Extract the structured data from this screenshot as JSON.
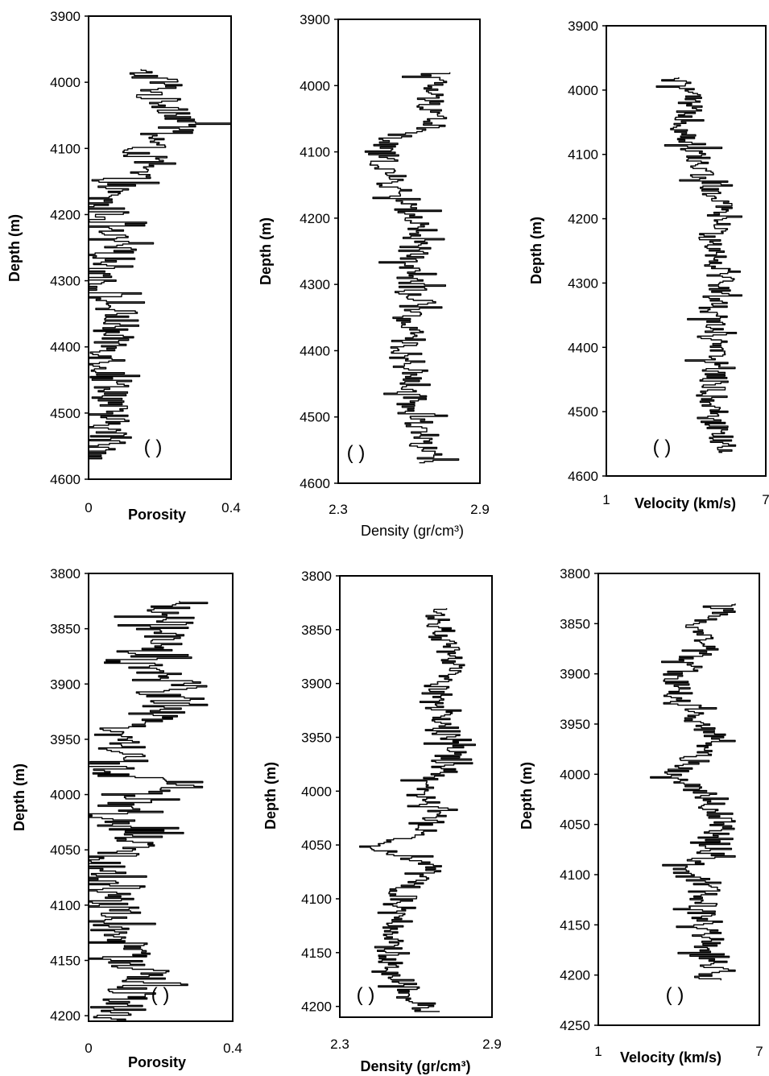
{
  "chart_data": [
    {
      "id": "top-porosity",
      "type": "line",
      "ylabel": "Depth (m)",
      "xlabel": "Porosity",
      "xlabel_bold": true,
      "ylim": [
        3900,
        4600
      ],
      "xlim": [
        0,
        0.4
      ],
      "yticks": [
        "3900",
        "4000",
        "4100",
        "4200",
        "4300",
        "4400",
        "4500",
        "4600"
      ],
      "xticks": [
        "0",
        "0.4"
      ],
      "panel_label": "(     )",
      "series": [
        {
          "depth": [
            3980,
            4000,
            4020,
            4040,
            4060,
            4080,
            4100,
            4120,
            4140,
            4160,
            4180,
            4200,
            4220,
            4240,
            4260,
            4280,
            4300,
            4320,
            4340,
            4360,
            4380,
            4400,
            4420,
            4440,
            4460,
            4480,
            4500,
            4520,
            4540,
            4560,
            4570
          ],
          "value": [
            0.12,
            0.22,
            0.18,
            0.25,
            0.28,
            0.2,
            0.15,
            0.16,
            0.12,
            0.06,
            0.03,
            0.06,
            0.04,
            0.06,
            0.08,
            0.06,
            0.02,
            0.04,
            0.07,
            0.09,
            0.06,
            0.07,
            0.06,
            0.05,
            0.08,
            0.07,
            0.04,
            0.06,
            0.05,
            0.04,
            0.03
          ],
          "spread": 0.08,
          "min": 0,
          "max": 0.42
        }
      ]
    },
    {
      "id": "top-density",
      "type": "line",
      "ylabel": "Depth (m)",
      "xlabel": "Density (gr/cm³)",
      "xlabel_bold": false,
      "ylim": [
        3900,
        4600
      ],
      "xlim": [
        2.3,
        2.9
      ],
      "yticks": [
        "3900",
        "4000",
        "4100",
        "4200",
        "4300",
        "4400",
        "4500",
        "4600"
      ],
      "xticks": [
        "2.3",
        "2.9"
      ],
      "panel_label": "(  )",
      "series": [
        {
          "depth": [
            3980,
            4000,
            4020,
            4040,
            4060,
            4080,
            4100,
            4120,
            4140,
            4160,
            4180,
            4200,
            4220,
            4240,
            4260,
            4280,
            4300,
            4320,
            4340,
            4360,
            4380,
            4400,
            4420,
            4440,
            4460,
            4480,
            4500,
            4520,
            4540,
            4560,
            4570
          ],
          "value": [
            2.7,
            2.7,
            2.68,
            2.72,
            2.7,
            2.5,
            2.48,
            2.5,
            2.52,
            2.55,
            2.6,
            2.62,
            2.6,
            2.63,
            2.6,
            2.6,
            2.62,
            2.6,
            2.62,
            2.58,
            2.6,
            2.58,
            2.6,
            2.62,
            2.62,
            2.6,
            2.64,
            2.66,
            2.66,
            2.68,
            2.68
          ],
          "spread": 0.09,
          "min": 2.3,
          "max": 2.89
        }
      ]
    },
    {
      "id": "top-velocity",
      "type": "line",
      "ylabel": "Depth (m)",
      "xlabel": "Velocity (km/s)",
      "xlabel_bold": true,
      "ylim": [
        3900,
        4600
      ],
      "xlim": [
        1,
        7
      ],
      "yticks": [
        "3900",
        "4000",
        "4100",
        "4200",
        "4300",
        "4400",
        "4500",
        "4600"
      ],
      "xticks": [
        "1",
        "7"
      ],
      "panel_label": "(  )",
      "series": [
        {
          "depth": [
            3980,
            4000,
            4020,
            4040,
            4060,
            4080,
            4100,
            4120,
            4140,
            4160,
            4180,
            4200,
            4220,
            4240,
            4260,
            4280,
            4300,
            4320,
            4340,
            4360,
            4380,
            4400,
            4420,
            4440,
            4460,
            4480,
            4500,
            4520,
            4540,
            4560,
            4565
          ],
          "value": [
            3.4,
            4.1,
            4.0,
            4.2,
            3.9,
            4.2,
            4.4,
            4.5,
            4.7,
            5.0,
            5.3,
            5.3,
            5.0,
            5.1,
            5.2,
            5.3,
            5.4,
            5.2,
            5.0,
            5.2,
            5.1,
            5.0,
            5.0,
            5.1,
            5.0,
            5.0,
            5.1,
            5.2,
            5.3,
            5.4,
            5.5
          ],
          "spread": 0.7,
          "min": 2.6,
          "max": 6.1
        }
      ]
    },
    {
      "id": "bottom-porosity",
      "type": "line",
      "ylabel": "Depth (m)",
      "xlabel": "Porosity",
      "xlabel_bold": true,
      "ylim": [
        3800,
        4205
      ],
      "xlim": [
        0,
        0.4
      ],
      "yticks": [
        "3800",
        "3850",
        "3900",
        "3950",
        "4000",
        "4050",
        "4100",
        "4150",
        "4200"
      ],
      "xticks": [
        "0",
        "0.4"
      ],
      "panel_label": "( )",
      "series": [
        {
          "depth": [
            3825,
            3840,
            3860,
            3880,
            3900,
            3920,
            3940,
            3960,
            3980,
            3990,
            4000,
            4020,
            4040,
            4060,
            4080,
            4100,
            4120,
            4140,
            4160,
            4180,
            4200,
            4205
          ],
          "value": [
            0.2,
            0.22,
            0.18,
            0.12,
            0.25,
            0.22,
            0.1,
            0.1,
            0.05,
            0.28,
            0.12,
            0.05,
            0.15,
            0.03,
            0.06,
            0.08,
            0.06,
            0.1,
            0.15,
            0.12,
            0.04,
            0.06
          ],
          "spread": 0.1,
          "min": 0,
          "max": 0.33
        }
      ]
    },
    {
      "id": "bottom-density",
      "type": "line",
      "ylabel": "Depth (m)",
      "xlabel": "Density (gr/cm³)",
      "xlabel_bold": true,
      "ylim": [
        3800,
        4210
      ],
      "xlim": [
        2.3,
        2.9
      ],
      "yticks": [
        "3800",
        "3850",
        "3900",
        "3950",
        "4000",
        "4050",
        "4100",
        "4150",
        "4200"
      ],
      "xticks": [
        "2.3",
        "2.9"
      ],
      "panel_label": "( )",
      "series": [
        {
          "depth": [
            3830,
            3850,
            3870,
            3890,
            3900,
            3920,
            3940,
            3960,
            3980,
            4000,
            4020,
            4040,
            4050,
            4070,
            4090,
            4110,
            4130,
            4150,
            4170,
            4190,
            4205
          ],
          "value": [
            2.68,
            2.7,
            2.72,
            2.75,
            2.7,
            2.68,
            2.72,
            2.74,
            2.7,
            2.6,
            2.7,
            2.62,
            2.42,
            2.7,
            2.55,
            2.55,
            2.52,
            2.48,
            2.52,
            2.6,
            2.65
          ],
          "spread": 0.07,
          "min": 2.36,
          "max": 2.88
        }
      ]
    },
    {
      "id": "bottom-velocity",
      "type": "line",
      "ylabel": "Depth (m)",
      "xlabel": "Velocity (km/s)",
      "xlabel_bold": true,
      "ylim": [
        3800,
        4250
      ],
      "xlim": [
        1,
        7
      ],
      "yticks": [
        "3800",
        "3850",
        "3900",
        "3950",
        "4000",
        "4050",
        "4100",
        "4150",
        "4200",
        "4250"
      ],
      "xticks": [
        "1",
        "7"
      ],
      "panel_label": "( )",
      "series": [
        {
          "depth": [
            3830,
            3850,
            3870,
            3890,
            3910,
            3930,
            3950,
            3970,
            3990,
            4000,
            4020,
            4040,
            4060,
            4080,
            4095,
            4110,
            4130,
            4150,
            4170,
            4190,
            4205
          ],
          "value": [
            5.6,
            4.8,
            5.0,
            4.4,
            3.8,
            4.2,
            5.0,
            5.2,
            4.4,
            3.6,
            5.2,
            5.4,
            5.6,
            5.2,
            4.0,
            5.0,
            4.8,
            5.0,
            5.2,
            5.3,
            5.2
          ],
          "spread": 0.8,
          "min": 2.8,
          "max": 6.1
        }
      ]
    }
  ]
}
